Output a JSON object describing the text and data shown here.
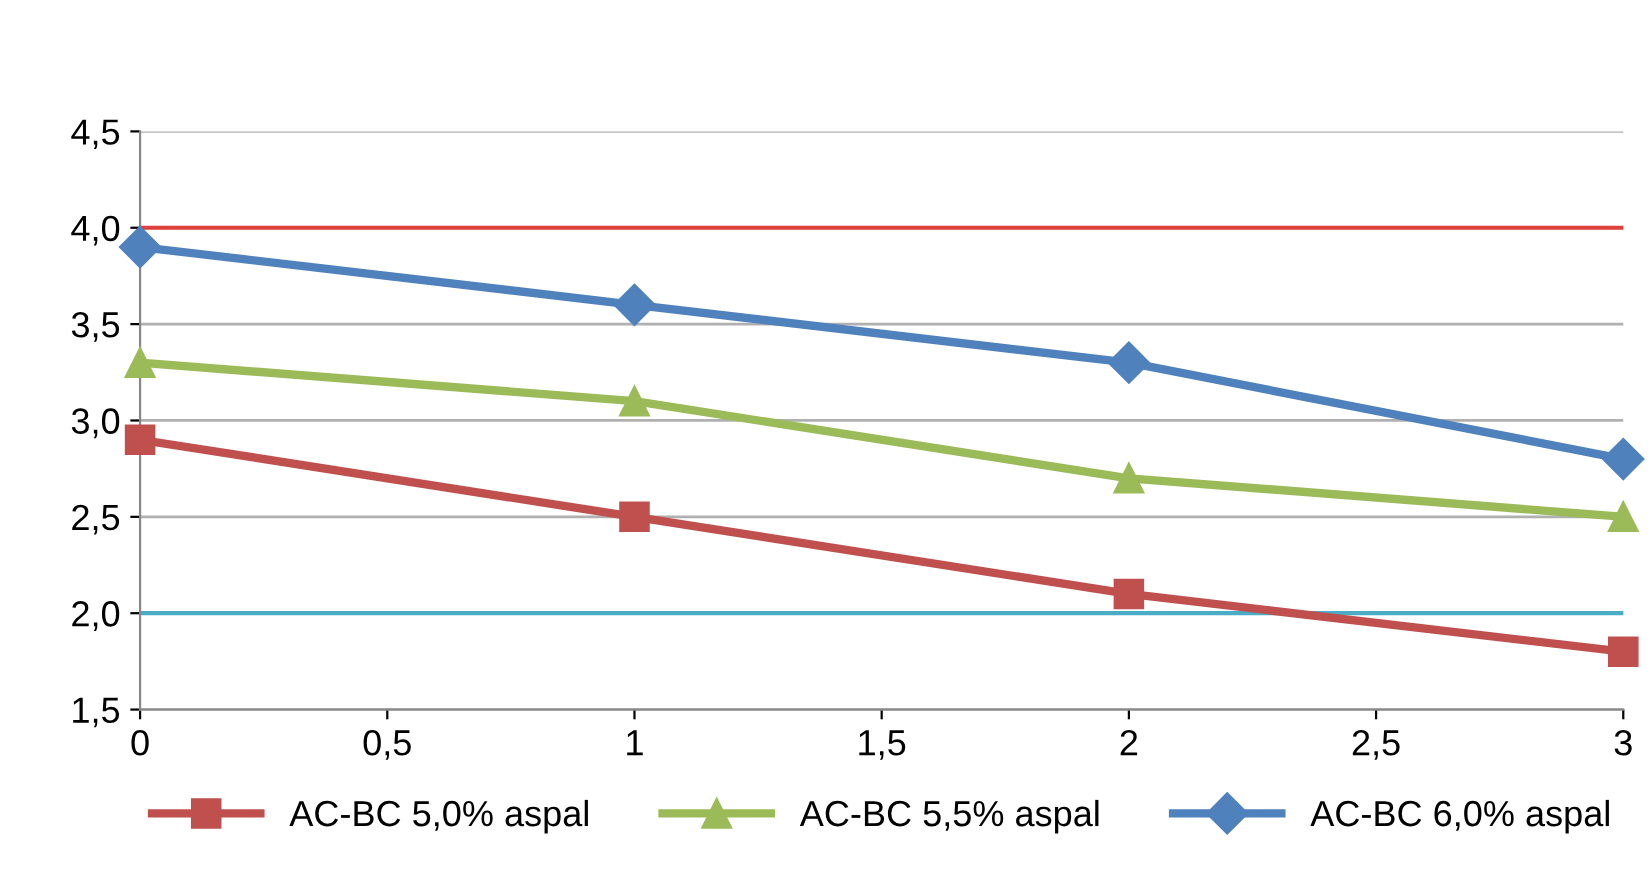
{
  "chart_data": {
    "type": "line",
    "x": [
      0,
      1,
      2,
      3
    ],
    "series": [
      {
        "name": "AC-BC 5,0% aspal",
        "color": "#c0504d",
        "marker": "square",
        "values": [
          2.9,
          2.5,
          2.1,
          1.8
        ]
      },
      {
        "name": "AC-BC 5,5% aspal",
        "color": "#9bbb59",
        "marker": "triangle",
        "values": [
          3.3,
          3.1,
          2.7,
          2.5
        ]
      },
      {
        "name": "AC-BC 6,0% aspal",
        "color": "#4f81bd",
        "marker": "diamond",
        "values": [
          3.9,
          3.6,
          3.3,
          2.8
        ]
      }
    ],
    "xlim": [
      0,
      3
    ],
    "xticks": [
      0,
      {
        "value": 0.5,
        "label": "0,5"
      },
      1,
      {
        "value": 1.5,
        "label": "1,5"
      },
      2,
      {
        "value": 2.5,
        "label": "2,5"
      },
      3
    ],
    "ylim": [
      1.5,
      4.5
    ],
    "yticks": [
      {
        "value": 1.5,
        "label": "1,5"
      },
      {
        "value": 2.0,
        "label": "2,0"
      },
      {
        "value": 2.5,
        "label": "2,5"
      },
      {
        "value": 3.0,
        "label": "3,0"
      },
      {
        "value": 3.5,
        "label": "3,5"
      },
      {
        "value": 4.0,
        "label": "4,0"
      },
      {
        "value": 4.5,
        "label": "4,5"
      }
    ],
    "ref_lines": [
      {
        "axis": "y",
        "value": 4.0,
        "color": "#e0403c"
      },
      {
        "axis": "y",
        "value": 2.0,
        "color": "#4bacc6"
      }
    ],
    "grid": "y",
    "legend": "bottom"
  }
}
